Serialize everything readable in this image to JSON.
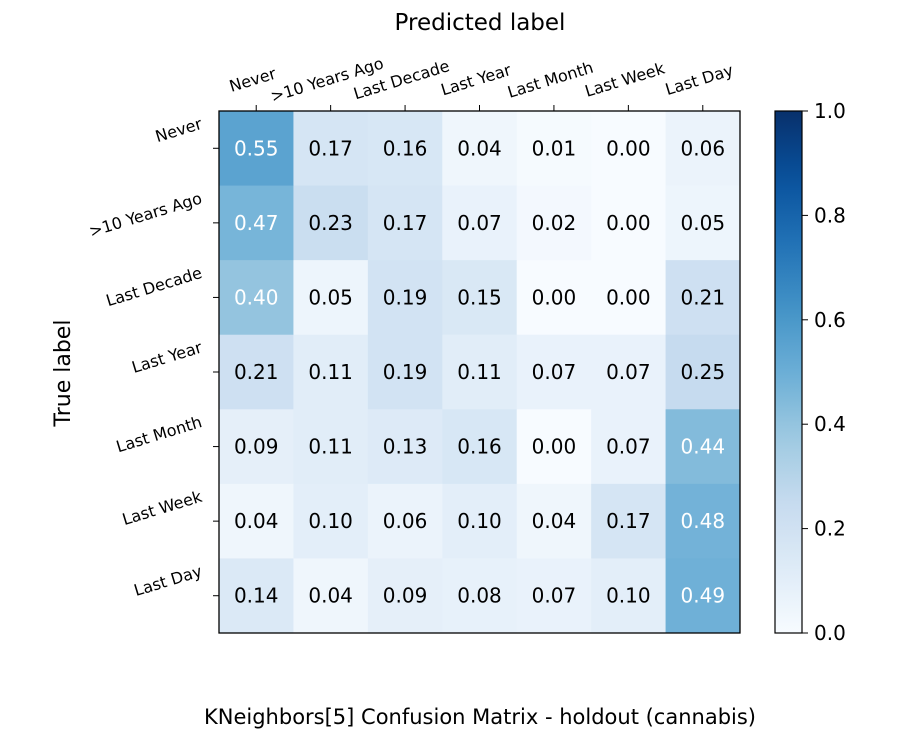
{
  "chart_data": {
    "type": "heatmap",
    "title": "Predicted label",
    "xlabel": "Predicted label",
    "ylabel": "True label",
    "caption": "KNeighbors[5] Confusion Matrix - holdout (cannabis)",
    "x_labels": [
      "Never",
      ">10 Years Ago",
      "Last Decade",
      "Last Year",
      "Last Month",
      "Last Week",
      "Last Day"
    ],
    "y_labels": [
      "Never",
      ">10 Years Ago",
      "Last Decade",
      "Last Year",
      "Last Month",
      "Last Week",
      "Last Day"
    ],
    "values": [
      [
        0.55,
        0.17,
        0.16,
        0.04,
        0.01,
        0.0,
        0.06
      ],
      [
        0.47,
        0.23,
        0.17,
        0.07,
        0.02,
        0.0,
        0.05
      ],
      [
        0.4,
        0.05,
        0.19,
        0.15,
        0.0,
        0.0,
        0.21
      ],
      [
        0.21,
        0.11,
        0.19,
        0.11,
        0.07,
        0.07,
        0.25
      ],
      [
        0.09,
        0.11,
        0.13,
        0.16,
        0.0,
        0.07,
        0.44
      ],
      [
        0.04,
        0.1,
        0.06,
        0.1,
        0.04,
        0.17,
        0.48
      ],
      [
        0.14,
        0.04,
        0.09,
        0.08,
        0.07,
        0.1,
        0.49
      ]
    ],
    "colorbar": {
      "range": [
        0.0,
        1.0
      ],
      "ticks": [
        "0.0",
        "0.2",
        "0.4",
        "0.6",
        "0.8",
        "1.0"
      ],
      "colormap": "Blues"
    }
  }
}
